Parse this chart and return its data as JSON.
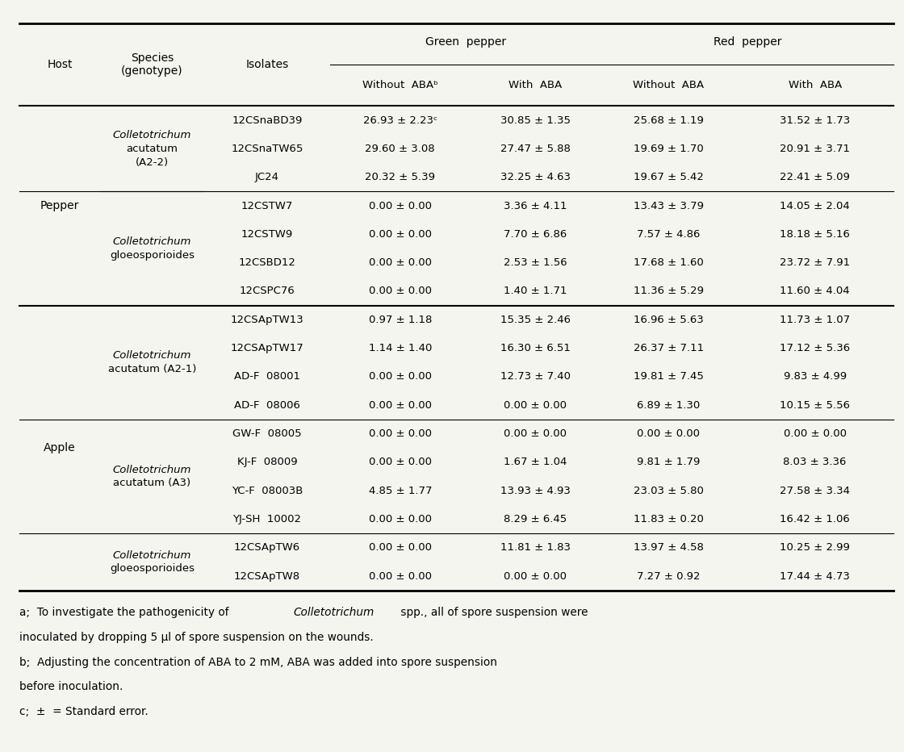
{
  "col_headers_l1": [
    "",
    "",
    "",
    "Green  pepper",
    "",
    "Red  pepper",
    ""
  ],
  "col_headers_l2": [
    "Host",
    "Species\n(genotype)",
    "Isolates",
    "Without  ABAᵇ",
    "With  ABA",
    "Without  ABA",
    "With  ABA"
  ],
  "rows": [
    {
      "host": "Pepper",
      "host_span": 7,
      "species": "Colletotrichum\nacutatum\n(A2-2)",
      "species_italic": true,
      "species_span": 3,
      "isolates": [
        "12CSnaBD39",
        "12CSnaTW65",
        "JC24"
      ],
      "data": [
        [
          "26.93 ± 2.23ᶜ",
          "30.85 ± 1.35",
          "25.68 ± 1.19",
          "31.52 ± 1.73"
        ],
        [
          "29.60 ± 3.08",
          "27.47 ± 5.88",
          "19.69 ± 1.70",
          "20.91 ± 3.71"
        ],
        [
          "20.32 ± 5.39",
          "32.25 ± 4.63",
          "19.67 ± 5.42",
          "22.41 ± 5.09"
        ]
      ]
    },
    {
      "host": "",
      "species": "Colletotrichum\ngloeosporioides",
      "species_italic": true,
      "species_span": 4,
      "isolates": [
        "12CSTW7",
        "12CSTW9",
        "12CSBD12",
        "12CSPC76"
      ],
      "data": [
        [
          "0.00 ± 0.00",
          "3.36 ± 4.11",
          "13.43 ± 3.79",
          "14.05 ± 2.04"
        ],
        [
          "0.00 ± 0.00",
          "7.70 ± 6.86",
          "7.57 ± 4.86",
          "18.18 ± 5.16"
        ],
        [
          "0.00 ± 0.00",
          "2.53 ± 1.56",
          "17.68 ± 1.60",
          "23.72 ± 7.91"
        ],
        [
          "0.00 ± 0.00",
          "1.40 ± 1.71",
          "11.36 ± 5.29",
          "11.60 ± 4.04"
        ]
      ]
    },
    {
      "host": "Apple",
      "host_span": 10,
      "species": "Colletotrichum\nacutatum (A2-1)",
      "species_italic": true,
      "species_span": 4,
      "isolates": [
        "12CSApTW13",
        "12CSApTW17",
        "AD-F  08001",
        "AD-F  08006"
      ],
      "data": [
        [
          "0.97 ± 1.18",
          "15.35 ± 2.46",
          "16.96 ± 5.63",
          "11.73 ± 1.07"
        ],
        [
          "1.14 ± 1.40",
          "16.30 ± 6.51",
          "26.37 ± 7.11",
          "17.12 ± 5.36"
        ],
        [
          "0.00 ± 0.00",
          "12.73 ± 7.40",
          "19.81 ± 7.45",
          "9.83 ± 4.99"
        ],
        [
          "0.00 ± 0.00",
          "0.00 ± 0.00",
          "6.89 ± 1.30",
          "10.15 ± 5.56"
        ]
      ]
    },
    {
      "host": "",
      "species": "Colletotrichum\nacutatum (A3)",
      "species_italic": true,
      "species_span": 4,
      "isolates": [
        "GW-F  08005",
        "KJ-F  08009",
        "YC-F  08003B",
        "YJ-SH  10002"
      ],
      "data": [
        [
          "0.00 ± 0.00",
          "0.00 ± 0.00",
          "0.00 ± 0.00",
          "0.00 ± 0.00"
        ],
        [
          "0.00 ± 0.00",
          "1.67 ± 1.04",
          "9.81 ± 1.79",
          "8.03 ± 3.36"
        ],
        [
          "4.85 ± 1.77",
          "13.93 ± 4.93",
          "23.03 ± 5.80",
          "27.58 ± 3.34"
        ],
        [
          "0.00 ± 0.00",
          "8.29 ± 6.45",
          "11.83 ± 0.20",
          "16.42 ± 1.06"
        ]
      ]
    },
    {
      "host": "",
      "species": "Colletotrichum\ngloeosporioides",
      "species_italic": true,
      "species_span": 2,
      "isolates": [
        "12CSApTW6",
        "12CSApTW8"
      ],
      "data": [
        [
          "0.00 ± 0.00",
          "11.81 ± 1.83",
          "13.97 ± 4.58",
          "10.25 ± 2.99"
        ],
        [
          "0.00 ± 0.00",
          "0.00 ± 0.00",
          "7.27 ± 0.92",
          "17.44 ± 4.73"
        ]
      ]
    }
  ],
  "footnotes": [
    "a;  To investigate the pathogenicity of $\\it{Colletotrichum}$ spp., all of spore suspension were",
    "inoculated by dropping 5 μl of spore suspension on the wounds.",
    "b;  Adjusting the concentration of ABA to 2 mM, ABA was added into spore suspension",
    "before inoculation.",
    "c;  ±  = Standard error."
  ],
  "bg_color": "#f5f5f0",
  "text_color": "#000000",
  "font_size": 9.5,
  "header_font_size": 10
}
